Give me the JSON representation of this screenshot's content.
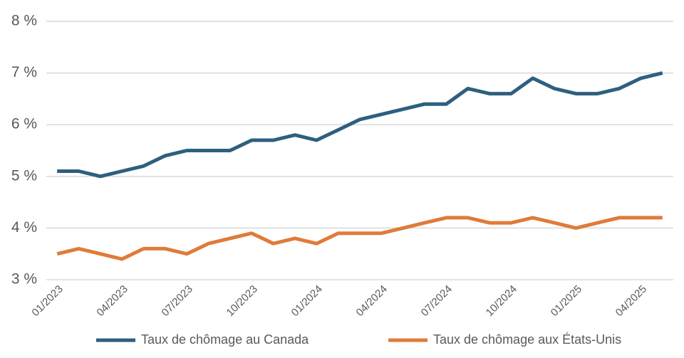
{
  "chart_data": {
    "type": "line",
    "categories": [
      "01/2023",
      null,
      null,
      "04/2023",
      null,
      null,
      "07/2023",
      null,
      null,
      "10/2023",
      null,
      null,
      "01/2024",
      null,
      null,
      "04/2024",
      null,
      null,
      "07/2024",
      null,
      null,
      "10/2024",
      null,
      null,
      "01/2025",
      null,
      null,
      "04/2025",
      null
    ],
    "series": [
      {
        "name": "Taux de chômage au Canada",
        "color": "#2e5f7f",
        "values": [
          5.1,
          5.1,
          5.0,
          5.1,
          5.2,
          5.4,
          5.5,
          5.5,
          5.5,
          5.7,
          5.7,
          5.8,
          5.7,
          5.9,
          6.1,
          6.2,
          6.3,
          6.4,
          6.4,
          6.7,
          6.6,
          6.6,
          6.9,
          6.7,
          6.6,
          6.6,
          6.7,
          6.9,
          7.0
        ]
      },
      {
        "name": "Taux de chômage aux États-Unis",
        "color": "#e07b39",
        "values": [
          3.5,
          3.6,
          3.5,
          3.4,
          3.6,
          3.6,
          3.5,
          3.7,
          3.8,
          3.9,
          3.7,
          3.8,
          3.7,
          3.9,
          3.9,
          3.9,
          4.0,
          4.1,
          4.2,
          4.2,
          4.1,
          4.1,
          4.2,
          4.1,
          4.0,
          4.1,
          4.2,
          4.2,
          4.2
        ]
      }
    ],
    "ylim": [
      3,
      8
    ],
    "yticks": [
      {
        "value": 3,
        "label": "3 %"
      },
      {
        "value": 4,
        "label": "4 %"
      },
      {
        "value": 5,
        "label": "5 %"
      },
      {
        "value": 6,
        "label": "6 %"
      },
      {
        "value": 7,
        "label": "7 %"
      },
      {
        "value": 8,
        "label": "8 %"
      }
    ],
    "grid": true,
    "legend": "bottom"
  }
}
